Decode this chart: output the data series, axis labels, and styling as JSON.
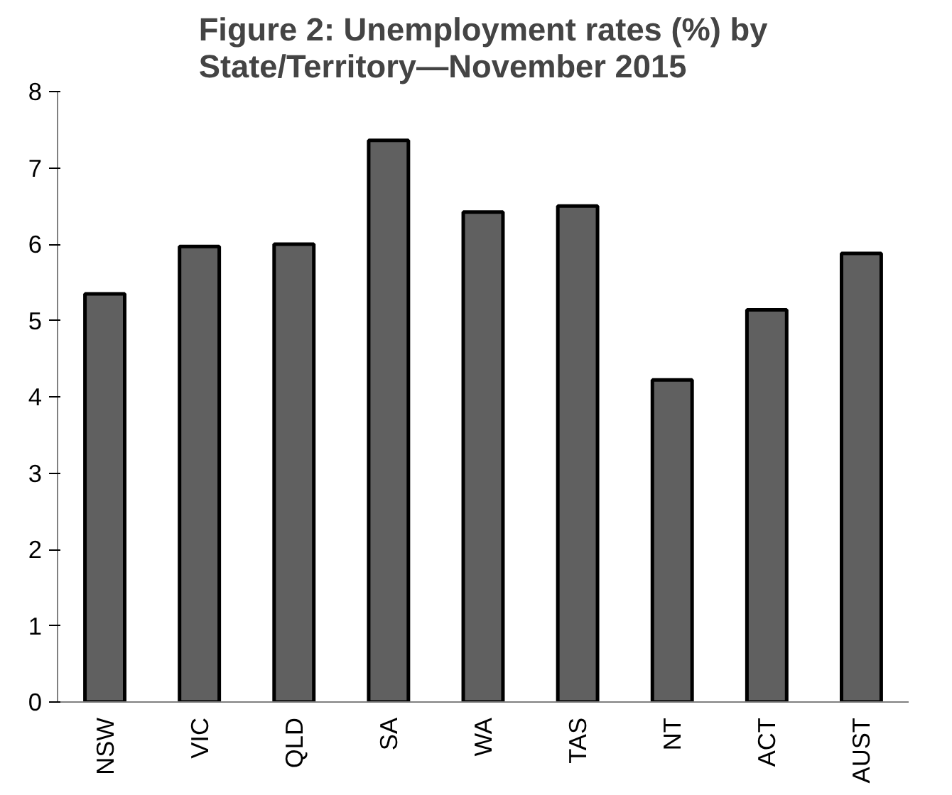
{
  "chart_data": {
    "type": "bar",
    "title": "Figure 2: Unemployment rates (%) by\nState/Territory—November 2015",
    "categories": [
      "NSW",
      "VIC",
      "QLD",
      "SA",
      "WA",
      "TAS",
      "NT",
      "ACT",
      "AUST"
    ],
    "values": [
      5.35,
      5.97,
      6.0,
      7.36,
      6.42,
      6.5,
      4.22,
      5.14,
      5.88
    ],
    "color": "#606060",
    "ylim": [
      0,
      8
    ],
    "yticks": [
      0,
      1,
      2,
      3,
      4,
      5,
      6,
      7,
      8
    ],
    "grid": false
  }
}
